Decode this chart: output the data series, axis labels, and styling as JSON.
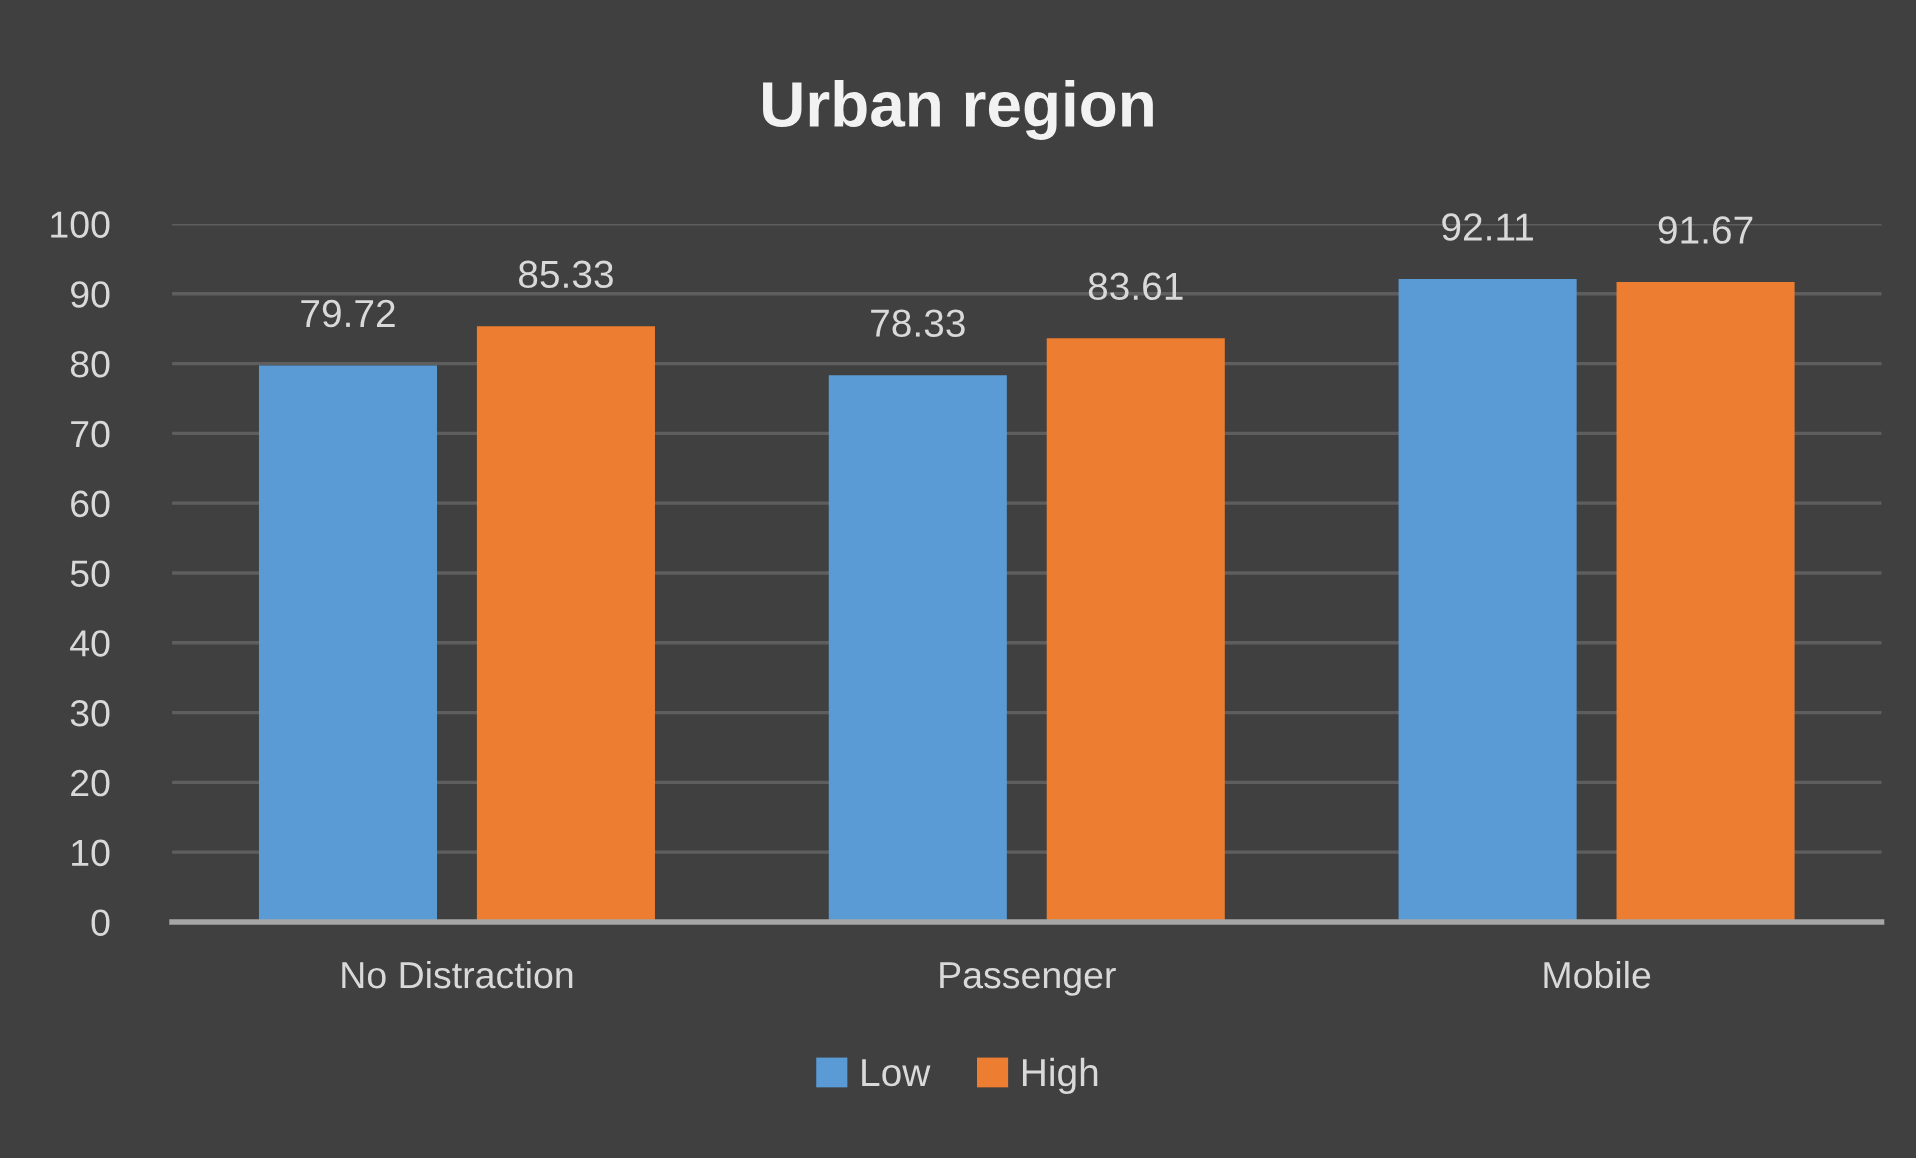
{
  "chart_data": {
    "type": "bar",
    "title": "Urban region",
    "categories": [
      "No Distraction",
      "Passenger",
      "Mobile"
    ],
    "series": [
      {
        "name": "Low",
        "color": "#5b9bd5",
        "values": [
          79.72,
          78.33,
          92.11
        ]
      },
      {
        "name": "High",
        "color": "#ed7d31",
        "values": [
          85.33,
          83.61,
          91.67
        ]
      }
    ],
    "ylim": [
      0,
      100
    ],
    "yticks": [
      0,
      10,
      20,
      30,
      40,
      50,
      60,
      70,
      80,
      90,
      100
    ],
    "grid": "y",
    "legend": "bottom",
    "data_labels": true
  }
}
